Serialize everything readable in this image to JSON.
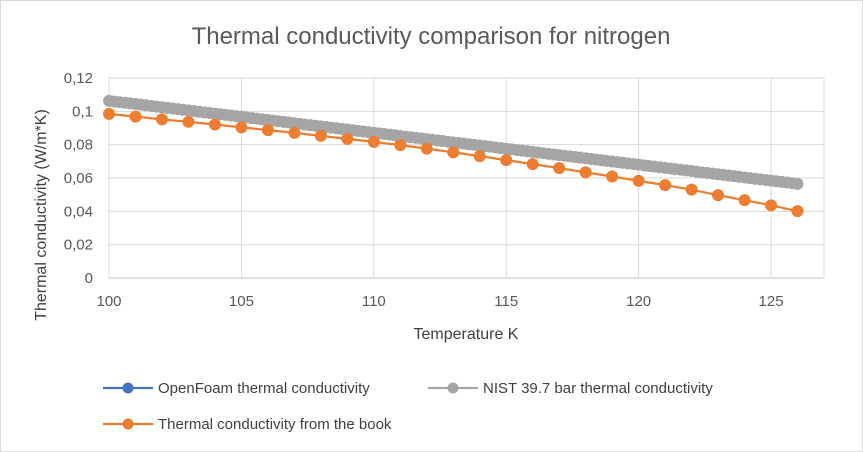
{
  "chart_data": {
    "type": "line",
    "title": "Thermal conductivity comparison for nitrogen",
    "xlabel": "Temperature K",
    "ylabel": "Thermal conductivity (W/m*K)",
    "xlim": [
      100,
      127
    ],
    "ylim": [
      0,
      0.12
    ],
    "x_ticks": [
      100,
      105,
      110,
      115,
      120,
      125
    ],
    "x_tick_labels": [
      "100",
      "105",
      "110",
      "115",
      "120",
      "125"
    ],
    "y_ticks": [
      0,
      0.02,
      0.04,
      0.06,
      0.08,
      0.1,
      0.12
    ],
    "y_tick_labels": [
      "0",
      "0,02",
      "0,04",
      "0,06",
      "0,08",
      "0,1",
      "0,12"
    ],
    "grid": true,
    "legend_position": "bottom",
    "series": [
      {
        "name": "OpenFoam thermal conductivity",
        "color": "#4472c4",
        "x": [],
        "y": []
      },
      {
        "name": "NIST 39.7 bar  thermal conductivity",
        "color": "#a5a5a5",
        "x_start": 100,
        "x_end": 126,
        "x_step": 0.2,
        "y_start": 0.1063,
        "y_end": 0.0565
      },
      {
        "name": "Thermal conductivity from the book",
        "color": "#ed7d31",
        "x": [
          100,
          101,
          102,
          103,
          104,
          105,
          106,
          107,
          108,
          109,
          110,
          111,
          112,
          113,
          114,
          115,
          116,
          117,
          118,
          119,
          120,
          121,
          122,
          123,
          124,
          125,
          126
        ],
        "y": [
          0.0985,
          0.0968,
          0.0952,
          0.0937,
          0.0921,
          0.0904,
          0.0887,
          0.0871,
          0.0853,
          0.0835,
          0.0817,
          0.0797,
          0.0776,
          0.0754,
          0.0731,
          0.0707,
          0.0683,
          0.0659,
          0.0634,
          0.0609,
          0.0583,
          0.0557,
          0.053,
          0.0497,
          0.0467,
          0.0436,
          0.0401
        ]
      }
    ]
  }
}
